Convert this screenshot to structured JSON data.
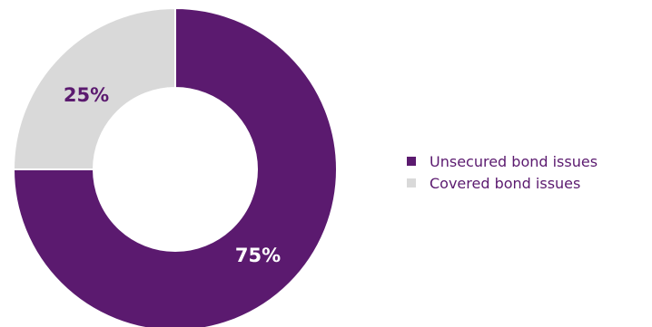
{
  "chart_data": {
    "type": "pie",
    "variant": "donut",
    "legend_position": "right",
    "slices": [
      {
        "name": "Unsecured bond issues",
        "value": 75,
        "label": "75%",
        "color": "#5b1a6f",
        "label_color": "#ffffff"
      },
      {
        "name": "Covered bond issues",
        "value": 25,
        "label": "25%",
        "color": "#d9d9d9",
        "label_color": "#5b1a6f"
      }
    ]
  }
}
